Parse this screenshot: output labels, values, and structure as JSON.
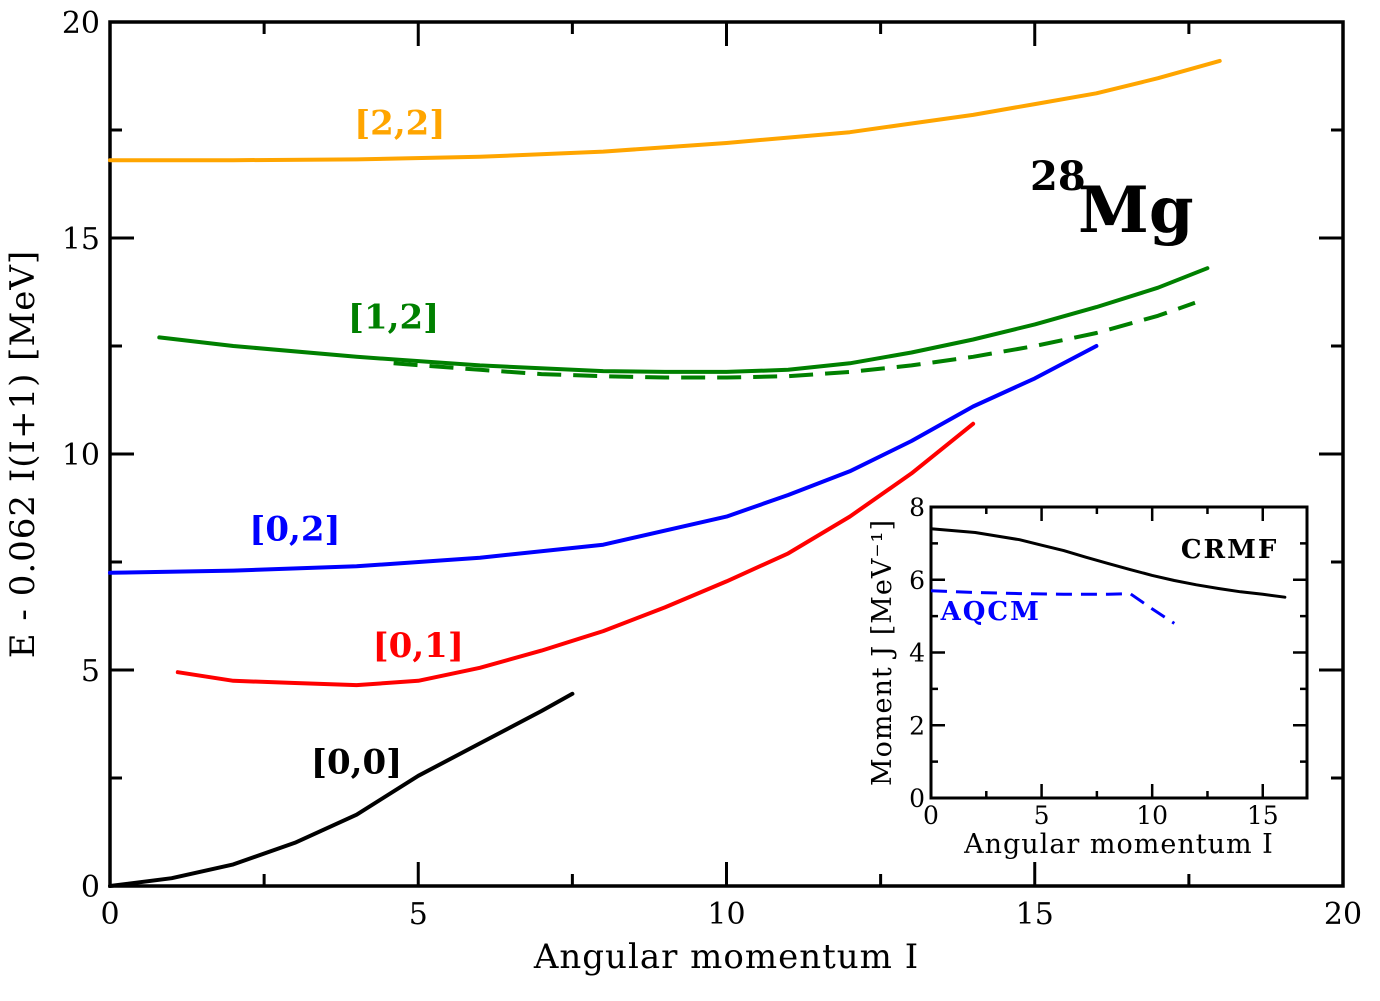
{
  "chart_data": [
    {
      "type": "line",
      "title": "",
      "xlabel": "Angular momentum I",
      "ylabel": "E - 0.062 I(I+1)  [MeV]",
      "xlim": [
        0,
        20
      ],
      "ylim": [
        0,
        20
      ],
      "xticks": [
        "0",
        "5",
        "10",
        "15",
        "20"
      ],
      "yticks": [
        "0",
        "5",
        "10",
        "15",
        "20"
      ],
      "annotation": {
        "superscript": "28",
        "text": "Mg"
      },
      "series": [
        {
          "name": "[0,0]",
          "color": "#000000",
          "style": "solid",
          "x": [
            0,
            1,
            2,
            3,
            4,
            5,
            6,
            7,
            7.5
          ],
          "y": [
            0,
            0.18,
            0.5,
            1.0,
            1.65,
            2.55,
            3.3,
            4.05,
            4.45
          ]
        },
        {
          "name": "[0,1]",
          "color": "#ff0000",
          "style": "solid",
          "x": [
            1.1,
            2,
            3,
            4,
            5,
            6,
            7,
            8,
            9,
            10,
            11,
            12,
            13,
            14
          ],
          "y": [
            4.95,
            4.75,
            4.7,
            4.65,
            4.75,
            5.05,
            5.45,
            5.9,
            6.45,
            7.05,
            7.7,
            8.55,
            9.55,
            10.7
          ]
        },
        {
          "name": "[0,2]",
          "color": "#0000ff",
          "style": "solid",
          "x": [
            0,
            2,
            4,
            6,
            8,
            10,
            11,
            12,
            13,
            14,
            15,
            16
          ],
          "y": [
            7.25,
            7.3,
            7.4,
            7.6,
            7.9,
            8.55,
            9.05,
            9.6,
            10.3,
            11.1,
            11.75,
            12.5
          ]
        },
        {
          "name": "[1,2]",
          "color": "#008000",
          "style": "solid",
          "x": [
            0.8,
            2,
            4,
            6,
            8,
            9,
            10,
            11,
            12,
            13,
            14,
            15,
            16,
            17,
            17.8
          ],
          "y": [
            12.7,
            12.5,
            12.25,
            12.05,
            11.92,
            11.9,
            11.9,
            11.95,
            12.1,
            12.35,
            12.65,
            13.0,
            13.4,
            13.85,
            14.3
          ]
        },
        {
          "name": "",
          "color": "#008000",
          "style": "dashed",
          "x": [
            4.6,
            6,
            7,
            8,
            9,
            10,
            11,
            12,
            13,
            14,
            15,
            16,
            17,
            17.6
          ],
          "y": [
            12.1,
            11.95,
            11.85,
            11.8,
            11.77,
            11.77,
            11.8,
            11.9,
            12.05,
            12.25,
            12.5,
            12.8,
            13.2,
            13.5
          ]
        },
        {
          "name": "[2,2]",
          "color": "#ffa500",
          "style": "solid",
          "x": [
            0,
            2,
            4,
            6,
            8,
            10,
            12,
            13,
            14,
            15,
            16,
            17,
            18
          ],
          "y": [
            16.8,
            16.8,
            16.82,
            16.88,
            17.0,
            17.2,
            17.45,
            17.65,
            17.85,
            18.1,
            18.35,
            18.7,
            19.1
          ]
        }
      ]
    },
    {
      "type": "line",
      "title": "",
      "xlabel": "Angular momentum  I",
      "ylabel": "Moment J [MeV⁻¹]",
      "xlim": [
        0,
        17
      ],
      "ylim": [
        0,
        8
      ],
      "xticks": [
        "0",
        "5",
        "10",
        "15"
      ],
      "yticks": [
        "0",
        "2",
        "4",
        "6",
        "8"
      ],
      "series": [
        {
          "name": "CRMF",
          "color": "#000000",
          "style": "solid",
          "x": [
            0,
            1,
            2,
            3,
            4,
            5,
            6,
            7,
            8,
            9,
            10,
            11,
            12,
            13,
            14,
            15,
            16
          ],
          "y": [
            7.4,
            7.35,
            7.3,
            7.2,
            7.1,
            6.95,
            6.8,
            6.62,
            6.45,
            6.28,
            6.12,
            5.98,
            5.86,
            5.76,
            5.67,
            5.6,
            5.52
          ]
        },
        {
          "name": "AQCM",
          "color": "#0000ff",
          "style": "dashed",
          "x": [
            0,
            2,
            4,
            6,
            8,
            9,
            10,
            11
          ],
          "y": [
            5.7,
            5.65,
            5.62,
            5.6,
            5.6,
            5.62,
            5.2,
            4.8
          ]
        }
      ]
    }
  ]
}
